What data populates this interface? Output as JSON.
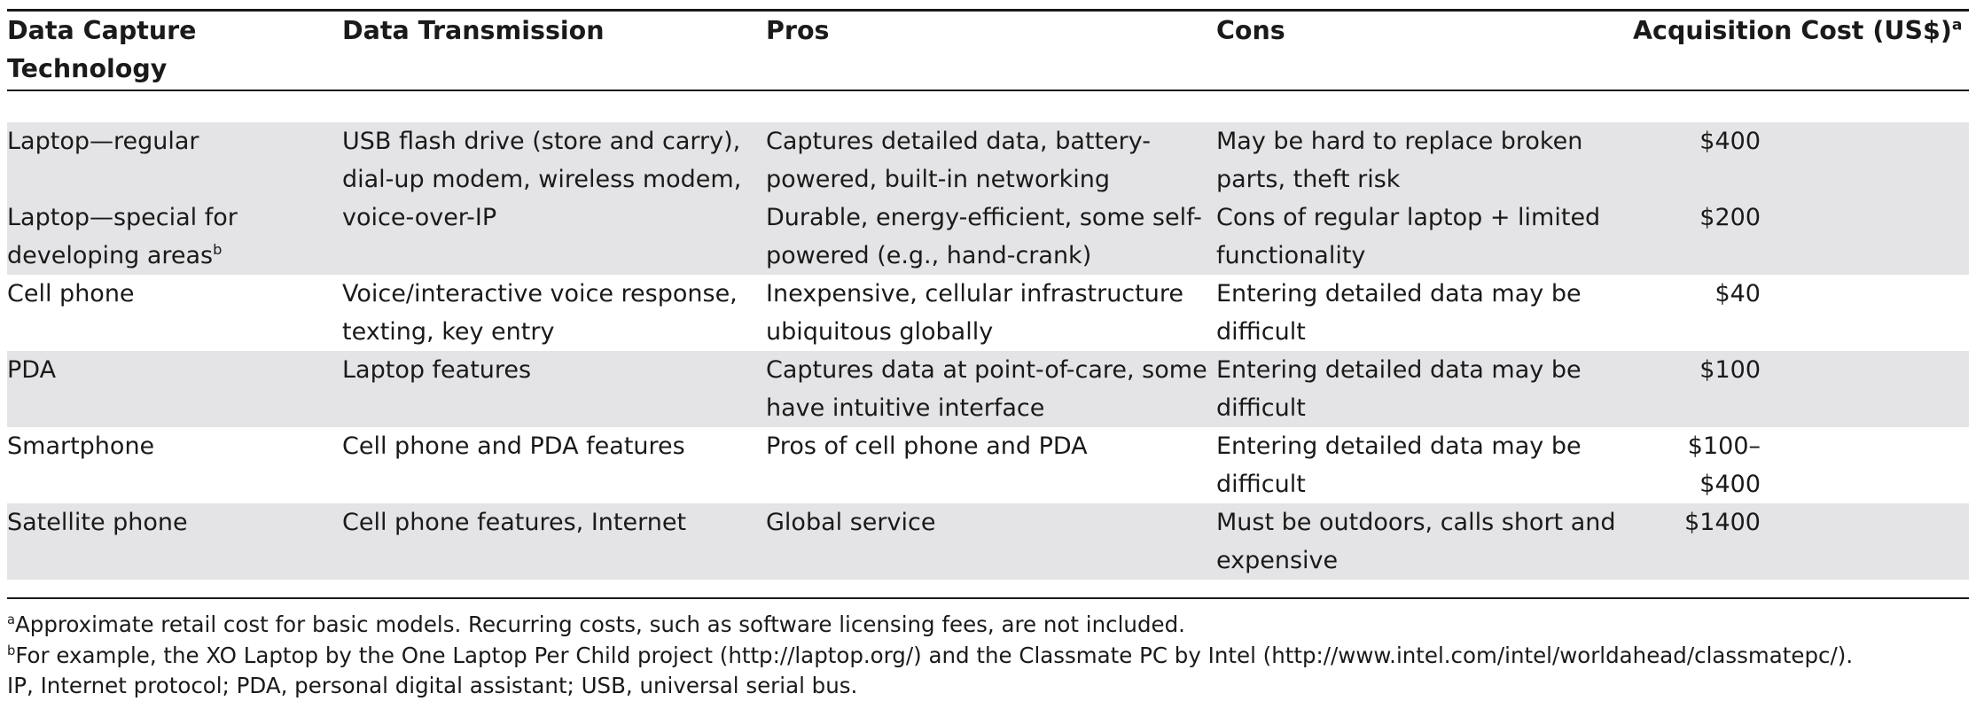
{
  "table": {
    "headers": {
      "technology_line1": "Data Capture",
      "technology_line2": "Technology",
      "transmission": "Data Transmission",
      "pros": "Pros",
      "cons": "Cons",
      "cost": "Acquisition Cost (US$)",
      "cost_sup": "a"
    },
    "rows": [
      {
        "technology": "Laptop—regular",
        "technology_sup": "",
        "transmission": "USB flash drive (store and carry), dial-up modem, wireless modem, voice-over-IP",
        "pros": "Captures detailed data, battery-powered, built-in networking",
        "cons": "May be hard to replace broken parts, theft risk",
        "cost": "$400"
      },
      {
        "technology": "Laptop—special for developing areas",
        "technology_sup": "b",
        "transmission": "",
        "pros": "Durable, energy-efficient, some self-powered (e.g., hand-crank)",
        "cons": "Cons of regular laptop + limited functionality",
        "cost": "$200"
      },
      {
        "technology": "Cell phone",
        "technology_sup": "",
        "transmission": "Voice/interactive voice response, texting, key entry",
        "pros": "Inexpensive, cellular infrastructure ubiquitous globally",
        "cons": "Entering detailed data may be difficult",
        "cost": "$40"
      },
      {
        "technology": "PDA",
        "technology_sup": "",
        "transmission": "Laptop features",
        "pros": "Captures data at point-of-care, some have intuitive interface",
        "cons": "Entering detailed data may be difficult",
        "cost": "$100"
      },
      {
        "technology": "Smartphone",
        "technology_sup": "",
        "transmission": "Cell phone and PDA features",
        "pros": "Pros of cell phone and PDA",
        "cons": "Entering detailed data may be difficult",
        "cost": "$100–$400"
      },
      {
        "technology": "Satellite phone",
        "technology_sup": "",
        "transmission": "Cell phone features, Internet",
        "pros": "Global service",
        "cons": "Must be outdoors, calls short and expensive",
        "cost": "$1400"
      }
    ]
  },
  "footnotes": {
    "a_marker": "a",
    "a_text": "Approximate retail cost for basic models. Recurring costs, such as software licensing fees, are not included.",
    "b_marker": "b",
    "b_text": "For example, the XO Laptop by the One Laptop Per Child project (http://laptop.org/) and the Classmate PC by Intel (http://www.intel.com/intel/worldahead/classmatepc/).",
    "abbreviations": "IP, Internet protocol; PDA, personal digital assistant; USB, universal serial bus."
  }
}
